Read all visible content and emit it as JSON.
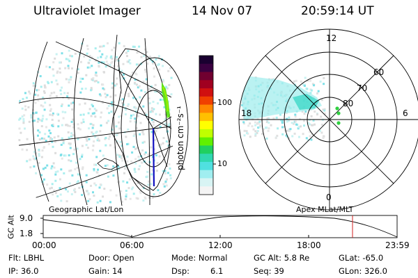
{
  "header": {
    "instrument": "Ultraviolet Imager",
    "date": "14 Nov 07",
    "time": "20:59:14 UT"
  },
  "colorbar": {
    "unit_label": "photon cm⁻²s⁻¹",
    "ticks": [
      "100",
      "10"
    ],
    "colors": [
      "#1a0030",
      "#3a0040",
      "#700030",
      "#a00020",
      "#d01010",
      "#f04000",
      "#ff8800",
      "#ffc000",
      "#ffff00",
      "#c0ff00",
      "#60f000",
      "#20d060",
      "#30d8b0",
      "#50e0e0",
      "#a0eef0",
      "#d8f4f4",
      "#f4f4f4"
    ]
  },
  "polar_plot": {
    "lat_labels": [
      "60",
      "70",
      "80"
    ],
    "mlt_labels": {
      "top": "12",
      "left": "18",
      "right": "6",
      "bottom": "0"
    }
  },
  "panel_labels": {
    "left": "Geographic Lat/Lon",
    "right": "Apex MLat/MLT"
  },
  "gc_alt_plot": {
    "ylabel": "GC Alt",
    "y_ticks": [
      "9.0",
      "1.8"
    ],
    "x_ticks": [
      "00:00",
      "06:00",
      "12:00",
      "18:00",
      "23:59"
    ],
    "marker_time": "20:59"
  },
  "status": {
    "flt": "Flt: LBHL",
    "ip": "IP: 36.0",
    "door": "Door: Open",
    "gain": "Gain: 14",
    "mode": "Mode: Normal",
    "dsp_label": "Dsp:",
    "dsp_value": "6.1",
    "gc_alt": "GC Alt: 5.8 Re",
    "seq": "Seq: 39",
    "glat": "GLat: -65.0",
    "glon": "GLon: 326.0"
  }
}
